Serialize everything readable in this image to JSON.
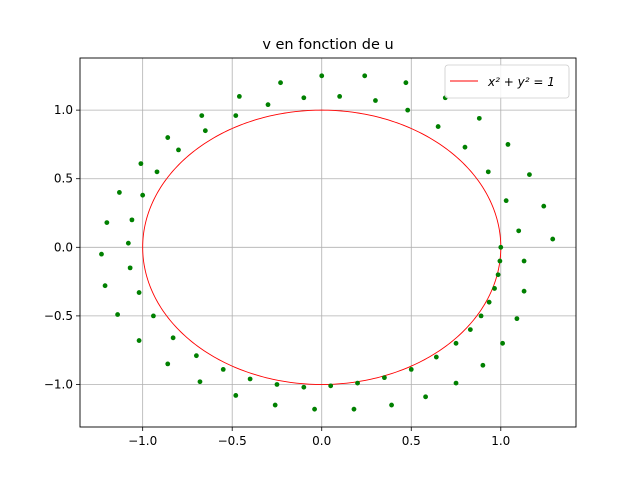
{
  "chart_data": {
    "type": "scatter",
    "title": "v en fonction de u",
    "xlabel": "",
    "ylabel": "",
    "xlim": [
      -1.35,
      1.42
    ],
    "ylim": [
      -1.31,
      1.38
    ],
    "grid": true,
    "legend_placement": "top-right",
    "x_ticks": [
      -1.0,
      -0.5,
      0.0,
      0.5,
      1.0
    ],
    "x_tick_labels": [
      "−1.0",
      "−0.5",
      "0.0",
      "0.5",
      "1.0"
    ],
    "y_ticks": [
      -1.0,
      -0.5,
      0.0,
      0.5,
      1.0
    ],
    "y_tick_labels": [
      "−1.0",
      "−0.5",
      "0.0",
      "0.5",
      "1.0"
    ],
    "series": [
      {
        "name": "x² + y² = 1",
        "kind": "line",
        "color": "#ff0000",
        "equation": "x^2 + y^2 = 1"
      },
      {
        "kind": "points",
        "color": "#008000",
        "description_of_shape": "outward spiral starting at (1.0, 0.0) clockwise",
        "points": [
          [
            1.0,
            0.0
          ],
          [
            0.995,
            -0.1
          ],
          [
            0.985,
            -0.2
          ],
          [
            0.965,
            -0.3
          ],
          [
            0.935,
            -0.4
          ],
          [
            0.89,
            -0.5
          ],
          [
            0.83,
            -0.6
          ],
          [
            0.75,
            -0.7
          ],
          [
            0.64,
            -0.8
          ],
          [
            0.5,
            -0.89
          ],
          [
            0.35,
            -0.95
          ],
          [
            0.2,
            -0.99
          ],
          [
            0.05,
            -1.01
          ],
          [
            -0.1,
            -1.02
          ],
          [
            -0.25,
            -1.0
          ],
          [
            -0.4,
            -0.96
          ],
          [
            -0.55,
            -0.89
          ],
          [
            -0.7,
            -0.79
          ],
          [
            -0.83,
            -0.66
          ],
          [
            -0.94,
            -0.5
          ],
          [
            -1.02,
            -0.33
          ],
          [
            -1.07,
            -0.15
          ],
          [
            -1.08,
            0.03
          ],
          [
            -1.06,
            0.2
          ],
          [
            -1.0,
            0.38
          ],
          [
            -0.92,
            0.55
          ],
          [
            -0.8,
            0.71
          ],
          [
            -0.65,
            0.85
          ],
          [
            -0.48,
            0.96
          ],
          [
            -0.3,
            1.04
          ],
          [
            -0.1,
            1.09
          ],
          [
            0.1,
            1.1
          ],
          [
            0.3,
            1.07
          ],
          [
            0.48,
            1.0
          ],
          [
            0.65,
            0.88
          ],
          [
            0.8,
            0.73
          ],
          [
            0.93,
            0.55
          ],
          [
            1.03,
            0.34
          ],
          [
            1.1,
            0.12
          ],
          [
            1.13,
            -0.1
          ],
          [
            1.13,
            -0.32
          ],
          [
            1.09,
            -0.52
          ],
          [
            1.01,
            -0.7
          ],
          [
            0.9,
            -0.86
          ],
          [
            0.75,
            -0.99
          ],
          [
            0.58,
            -1.09
          ],
          [
            0.39,
            -1.15
          ],
          [
            0.18,
            -1.18
          ],
          [
            -0.04,
            -1.18
          ],
          [
            -0.26,
            -1.15
          ],
          [
            -0.48,
            -1.08
          ],
          [
            -0.68,
            -0.98
          ],
          [
            -0.86,
            -0.85
          ],
          [
            -1.02,
            -0.68
          ],
          [
            -1.14,
            -0.49
          ],
          [
            -1.21,
            -0.28
          ],
          [
            -1.23,
            -0.05
          ],
          [
            -1.2,
            0.18
          ],
          [
            -1.13,
            0.4
          ],
          [
            -1.01,
            0.61
          ],
          [
            -0.86,
            0.8
          ],
          [
            -0.67,
            0.96
          ],
          [
            -0.46,
            1.1
          ],
          [
            -0.23,
            1.2
          ],
          [
            0.0,
            1.25
          ],
          [
            0.24,
            1.25
          ],
          [
            0.47,
            1.2
          ],
          [
            0.69,
            1.09
          ],
          [
            0.88,
            0.94
          ],
          [
            1.04,
            0.75
          ],
          [
            1.16,
            0.53
          ],
          [
            1.24,
            0.3
          ],
          [
            1.29,
            0.06
          ]
        ]
      }
    ]
  }
}
